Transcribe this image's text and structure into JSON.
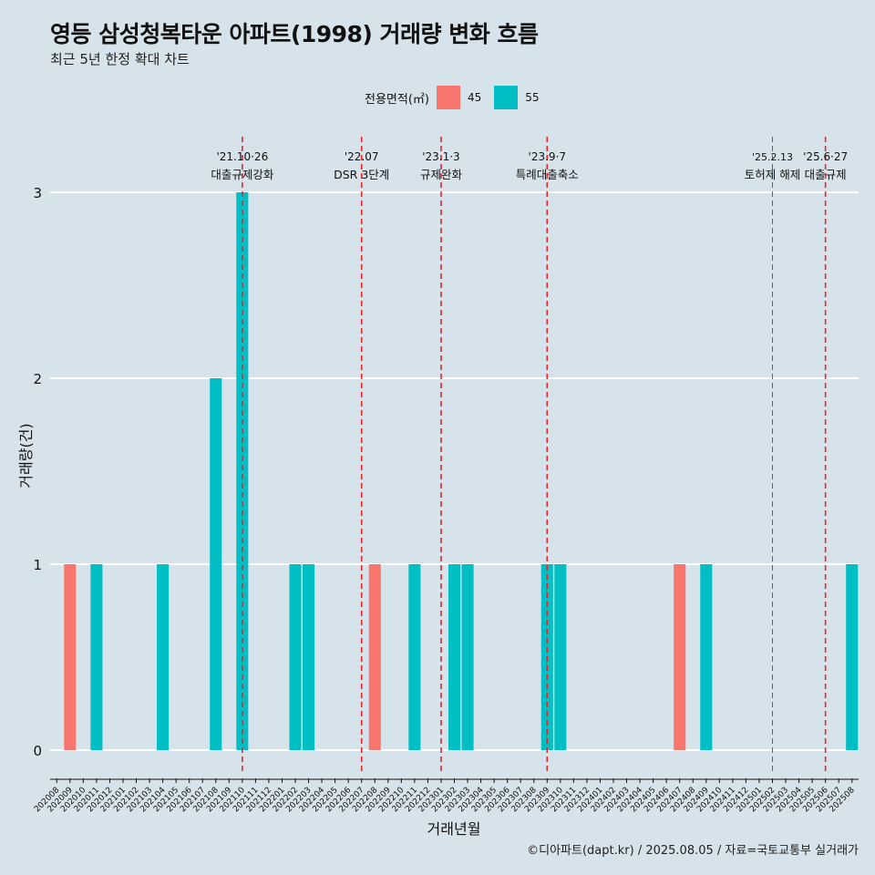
{
  "chart_data": {
    "type": "bar",
    "title": "영등 삼성청복타운 아파트(1998) 거래량 변화 흐름",
    "subtitle": "최근 5년 한정 확대 차트",
    "xlabel": "거래년월",
    "ylabel": "거래량(건)",
    "ylim": [
      0,
      3
    ],
    "yticks": [
      0,
      1,
      2,
      3
    ],
    "grid": true,
    "legend_position": "top",
    "legend_title": "전용면적(㎡)",
    "categories": [
      "202008",
      "202009",
      "202010",
      "202011",
      "202012",
      "202101",
      "202102",
      "202103",
      "202104",
      "202105",
      "202106",
      "202107",
      "202108",
      "202109",
      "202110",
      "202111",
      "202112",
      "202201",
      "202202",
      "202203",
      "202204",
      "202205",
      "202206",
      "202207",
      "202208",
      "202209",
      "202210",
      "202211",
      "202212",
      "202301",
      "202302",
      "202303",
      "202304",
      "202305",
      "202306",
      "202307",
      "202308",
      "202309",
      "202310",
      "202311",
      "202312",
      "202401",
      "202402",
      "202403",
      "202404",
      "202405",
      "202406",
      "202407",
      "202408",
      "202409",
      "202410",
      "202411",
      "202412",
      "202501",
      "202502",
      "202503",
      "202504",
      "202505",
      "202506",
      "202507",
      "202508"
    ],
    "series": [
      {
        "name": "45",
        "color": "#f8766d",
        "values": [
          0,
          1,
          0,
          0,
          0,
          0,
          0,
          0,
          0,
          0,
          0,
          0,
          0,
          0,
          0,
          0,
          0,
          0,
          0,
          0,
          0,
          0,
          0,
          0,
          1,
          0,
          0,
          0,
          0,
          0,
          0,
          0,
          0,
          0,
          0,
          0,
          0,
          0,
          0,
          0,
          0,
          0,
          0,
          0,
          0,
          0,
          0,
          1,
          0,
          0,
          0,
          0,
          0,
          0,
          0,
          0,
          0,
          0,
          0,
          0,
          0
        ]
      },
      {
        "name": "55",
        "color": "#00bfc4",
        "values": [
          0,
          0,
          0,
          1,
          0,
          0,
          0,
          0,
          1,
          0,
          0,
          0,
          2,
          0,
          3,
          0,
          0,
          0,
          1,
          1,
          0,
          0,
          0,
          0,
          0,
          0,
          0,
          1,
          0,
          0,
          1,
          1,
          0,
          0,
          0,
          0,
          0,
          1,
          1,
          0,
          0,
          0,
          0,
          0,
          0,
          0,
          0,
          0,
          0,
          1,
          0,
          0,
          0,
          0,
          0,
          0,
          0,
          0,
          0,
          0,
          1
        ]
      }
    ],
    "annotations": [
      {
        "category": "202110",
        "date": "'21.10·26",
        "label": "대출규제강화"
      },
      {
        "category": "202207",
        "date": "'22.07",
        "label": "DSR 3단계"
      },
      {
        "category": "202301",
        "date": "'23.1·3",
        "label": "규제완화"
      },
      {
        "category": "202309",
        "date": "'23.9·7",
        "label": "특례대출축소"
      },
      {
        "category": "202502",
        "date": "'25.2.13",
        "label": "토허제 해제"
      },
      {
        "category": "202506",
        "date": "'25.6·27",
        "label": "대출규제"
      }
    ],
    "annotation_color": "#e8252b"
  },
  "caption": "©디아파트(dapt.kr) / 2025.08.05 / 자료=국토교통부 실거래가"
}
